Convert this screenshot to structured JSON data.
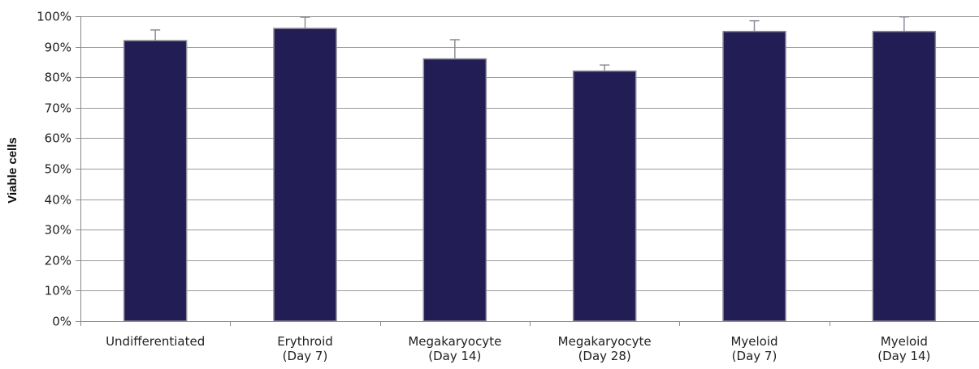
{
  "chart_data": {
    "type": "bar",
    "title": "",
    "xlabel": "",
    "ylabel": "Viable cells",
    "categories": [
      [
        "Undifferentiated"
      ],
      [
        "Erythroid",
        "(Day 7)"
      ],
      [
        "Megakaryocyte",
        "(Day 14)"
      ],
      [
        "Megakaryocyte",
        "(Day 28)"
      ],
      [
        "Myeloid",
        "(Day 7)"
      ],
      [
        "Myeloid",
        "(Day 14)"
      ]
    ],
    "values": [
      92,
      96,
      86,
      82,
      95,
      95
    ],
    "error_upper": [
      3.5,
      3.7,
      6.3,
      2.0,
      3.5,
      4.8
    ],
    "ylim": [
      0,
      100
    ],
    "yticks": [
      0,
      10,
      20,
      30,
      40,
      50,
      60,
      70,
      80,
      90,
      100
    ],
    "ytick_labels": [
      "0%",
      "10%",
      "20%",
      "30%",
      "40%",
      "50%",
      "60%",
      "70%",
      "80%",
      "90%",
      "100%"
    ],
    "grid": true,
    "legend": "none",
    "colors": {
      "bar_fill": "#221d55",
      "bar_stroke": "#8c8c96",
      "grid": "#9a9a9a",
      "axis": "#8a8a8a",
      "error_bar": "#8c8c96"
    }
  }
}
